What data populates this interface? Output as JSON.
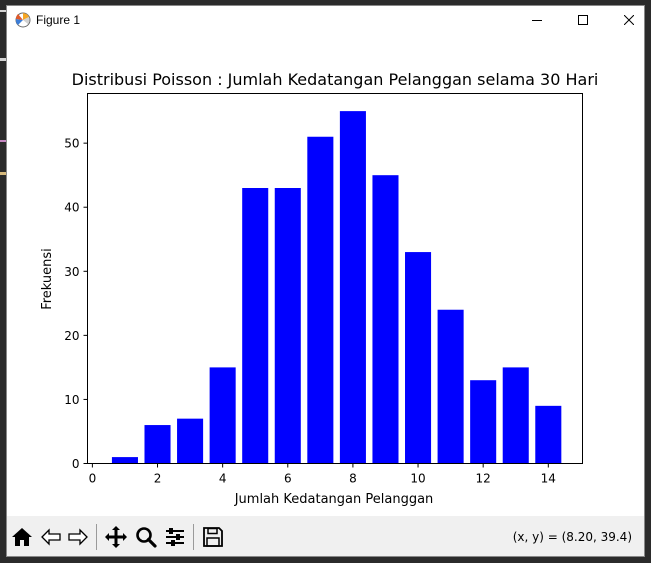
{
  "window": {
    "title": "Figure 1"
  },
  "chart_data": {
    "type": "bar",
    "title": "Distribusi Poisson : Jumlah Kedatangan Pelanggan selama 30 Hari",
    "xlabel": "Jumlah Kedatangan Pelanggan",
    "ylabel": "Frekuensi",
    "x": [
      1,
      2,
      3,
      4,
      5,
      6,
      7,
      8,
      9,
      10,
      11,
      12,
      13,
      14
    ],
    "values": [
      1,
      6,
      7,
      15,
      43,
      43,
      51,
      55,
      45,
      33,
      24,
      13,
      15,
      9
    ],
    "xlim": [
      -0.15,
      15.05
    ],
    "ylim": [
      0,
      57.75
    ],
    "xticks": [
      0,
      2,
      4,
      6,
      8,
      10,
      12,
      14
    ],
    "yticks": [
      0,
      10,
      20,
      30,
      40,
      50
    ],
    "bar_color": "#0000ff",
    "grid": false
  },
  "toolbar": {
    "buttons": [
      "home-icon",
      "back-arrow-icon",
      "forward-arrow-icon",
      "pan-icon",
      "zoom-icon",
      "configure-subplots-icon",
      "save-icon"
    ],
    "coords_text": "(x, y) = (8.20, 39.4)"
  }
}
